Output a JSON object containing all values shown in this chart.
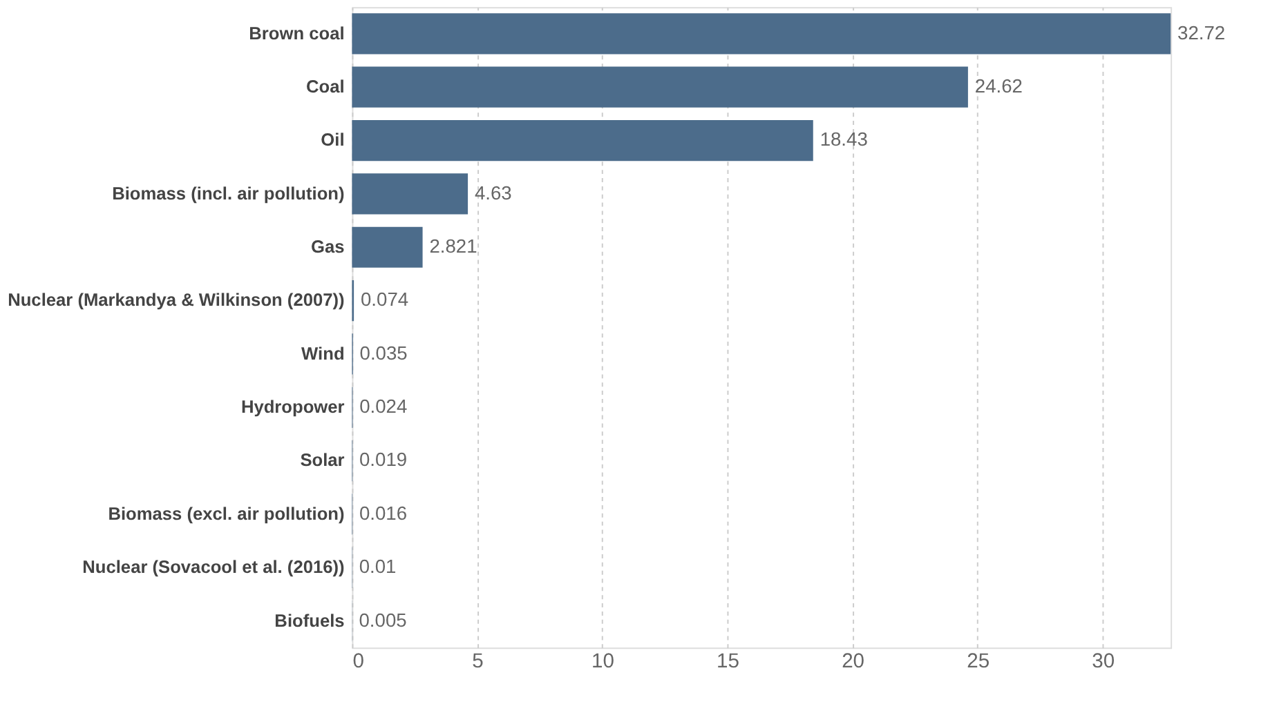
{
  "chart_data": {
    "type": "bar",
    "orientation": "horizontal",
    "categories": [
      "Brown coal",
      "Coal",
      "Oil",
      "Biomass (incl. air pollution)",
      "Gas",
      "Nuclear (Markandya & Wilkinson (2007))",
      "Wind",
      "Hydropower",
      "Solar",
      "Biomass (excl. air pollution)",
      "Nuclear (Sovacool et al. (2016))",
      "Biofuels"
    ],
    "values": [
      32.72,
      24.62,
      18.43,
      4.63,
      2.821,
      0.074,
      0.035,
      0.024,
      0.019,
      0.016,
      0.01,
      0.005
    ],
    "color": "#4c6c8b",
    "xlim": [
      0,
      32.72
    ],
    "xticks": [
      0,
      5,
      10,
      15,
      20,
      25,
      30
    ],
    "grid": "x",
    "data_labels": true
  }
}
